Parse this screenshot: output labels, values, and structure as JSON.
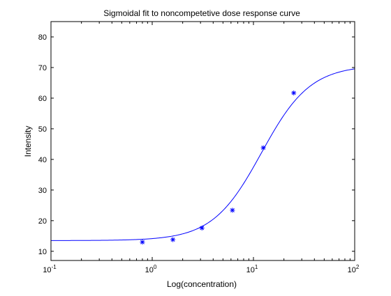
{
  "chart_data": {
    "type": "line",
    "title": "Sigmoidal fit to noncompetetive dose response curve",
    "xlabel": "Log(concentration)",
    "ylabel": "Intensity",
    "xscale": "log",
    "xlim": [
      0.1,
      100
    ],
    "ylim": [
      7,
      85
    ],
    "x_ticks": [
      {
        "value": 0.1,
        "base": "10",
        "exp": "-1"
      },
      {
        "value": 1,
        "base": "10",
        "exp": "0"
      },
      {
        "value": 10,
        "base": "10",
        "exp": "1"
      },
      {
        "value": 100,
        "base": "10",
        "exp": "2"
      }
    ],
    "y_ticks": [
      {
        "value": 10,
        "label": "10"
      },
      {
        "value": 20,
        "label": "20"
      },
      {
        "value": 30,
        "label": "30"
      },
      {
        "value": 40,
        "label": "40"
      },
      {
        "value": 50,
        "label": "50"
      },
      {
        "value": 60,
        "label": "60"
      },
      {
        "value": 70,
        "label": "70"
      },
      {
        "value": 80,
        "label": "80"
      }
    ],
    "grid": false,
    "color": "#0000ff",
    "series": [
      {
        "style": "markers",
        "marker": "asterisk",
        "x": [
          0.8,
          1.6,
          3.1,
          6.2,
          12.5,
          25
        ],
        "y": [
          13,
          13.8,
          17.6,
          23.4,
          43.8,
          61.7
        ]
      },
      {
        "style": "line",
        "model": "sigmoid",
        "params": {
          "bottom": 13.5,
          "top": 70.8,
          "ec50": 12.0,
          "hill": 1.8
        }
      }
    ]
  }
}
